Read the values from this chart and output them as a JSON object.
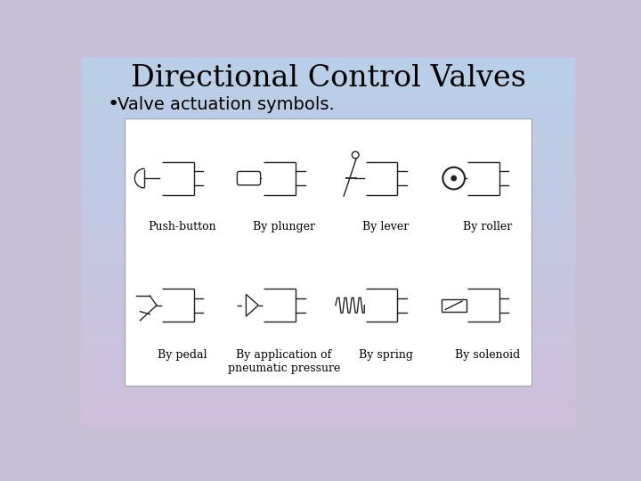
{
  "title": "Directional Control Valves",
  "subtitle": "Valve actuation symbols.",
  "labels": [
    "Push-button",
    "By plunger",
    "By lever",
    "By roller",
    "By pedal",
    "By application of\npneumatic pressure",
    "By spring",
    "By solenoid"
  ],
  "title_fontsize": 24,
  "subtitle_fontsize": 14,
  "label_fontsize": 9,
  "bg_top_color": "#b8d0e8",
  "bg_bottom_color": "#d0bedd",
  "box_bg": "#ffffff",
  "box_border": "#aaaaaa",
  "line_color": "#222222",
  "line_width": 1.0
}
